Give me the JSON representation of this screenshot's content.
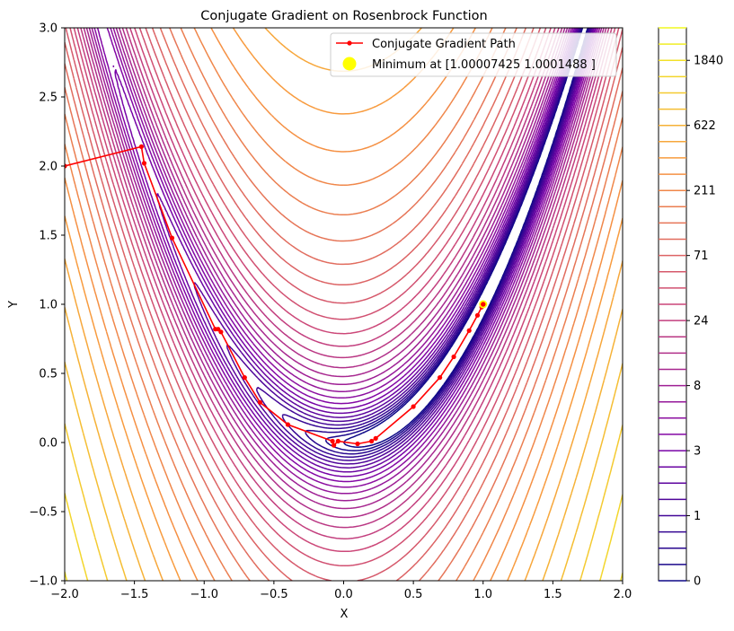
{
  "chart_data": {
    "type": "contour",
    "title": "Conjugate Gradient on Rosenbrock Function",
    "xlabel": "X",
    "ylabel": "Y",
    "xlim": [
      -2,
      2
    ],
    "ylim": [
      -1,
      3
    ],
    "x_ticks": [
      "−2.0",
      "−1.5",
      "−1.0",
      "−0.5",
      "0.0",
      "0.5",
      "1.0",
      "1.5",
      "2.0"
    ],
    "y_ticks": [
      "−1.0",
      "−0.5",
      "0.0",
      "0.5",
      "1.0",
      "1.5",
      "2.0",
      "2.5",
      "3.0"
    ],
    "x_tick_values": [
      -2,
      -1.5,
      -1,
      -0.5,
      0,
      0.5,
      1,
      1.5,
      2
    ],
    "y_tick_values": [
      -1,
      -0.5,
      0,
      0.5,
      1,
      1.5,
      2,
      2.5,
      3
    ],
    "function": "rosenbrock (1 - x)^2 + 100 (y - x^2)^2",
    "levels_log_min": 0,
    "levels_log_max": 3.6,
    "level_count": 35,
    "colormap": "plasma",
    "colorbar_ticks": [
      "0",
      "1",
      "3",
      "8",
      "24",
      "71",
      "211",
      "622",
      "1840"
    ],
    "path": {
      "name": "Conjugate Gradient Path",
      "color": "#ff0000",
      "points": [
        [
          -2.0,
          2.0
        ],
        [
          -1.45,
          2.14
        ],
        [
          -1.43,
          2.02
        ],
        [
          -1.23,
          1.48
        ],
        [
          -0.92,
          0.82
        ],
        [
          -0.9,
          0.82
        ],
        [
          -0.88,
          0.8
        ],
        [
          -0.71,
          0.47
        ],
        [
          -0.6,
          0.29
        ],
        [
          -0.4,
          0.13
        ],
        [
          -0.08,
          0.01
        ],
        [
          -0.07,
          -0.02
        ],
        [
          -0.04,
          0.01
        ],
        [
          0.1,
          -0.01
        ],
        [
          0.2,
          0.01
        ],
        [
          0.23,
          0.03
        ],
        [
          0.5,
          0.26
        ],
        [
          0.69,
          0.47
        ],
        [
          0.79,
          0.62
        ],
        [
          0.9,
          0.81
        ],
        [
          0.96,
          0.92
        ],
        [
          0.99,
          0.98
        ],
        [
          1.0,
          1.0
        ],
        [
          1.0,
          1.0
        ]
      ]
    },
    "minimum": {
      "label": "Minimum at [1.00007425 1.0001488 ]",
      "x": 1.00007425,
      "y": 1.0001488,
      "color": "#ffff00"
    },
    "legend_position": "upper right"
  }
}
